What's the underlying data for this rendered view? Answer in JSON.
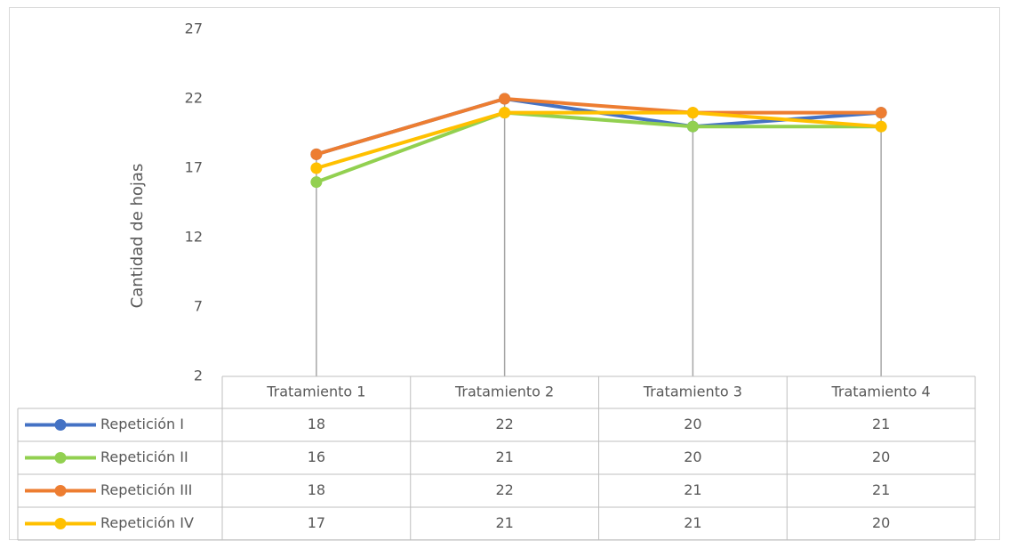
{
  "chart_data": {
    "type": "line",
    "y_label": "Cantidad de hojas",
    "categories": [
      "Tratamiento 1",
      "Tratamiento 2",
      "Tratamiento 3",
      "Tratamiento 4"
    ],
    "series": [
      {
        "name": "Repetición I",
        "color": "#4472c4",
        "values": [
          18,
          22,
          20,
          21
        ]
      },
      {
        "name": "Repetición II",
        "color": "#92d050",
        "values": [
          16,
          21,
          20,
          20
        ]
      },
      {
        "name": "Repetición III",
        "color": "#ed7d31",
        "values": [
          18,
          22,
          21,
          21
        ]
      },
      {
        "name": "Repetición IV",
        "color": "#ffc000",
        "values": [
          17,
          21,
          21,
          20
        ]
      }
    ],
    "ylim": [
      2,
      27
    ],
    "yticks": [
      2,
      7,
      12,
      17,
      22,
      27
    ],
    "drop_lines": true,
    "data_table": true
  }
}
